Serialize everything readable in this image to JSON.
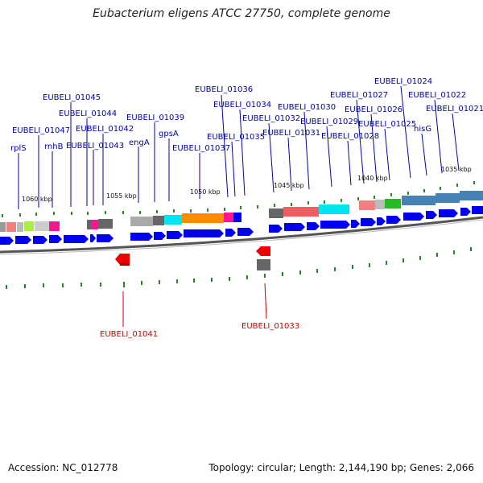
{
  "title": "Eubacterium eligens ATCC 27750, complete genome",
  "footer": {
    "accession": "Accession: NC_012778",
    "summary": "Topology: circular; Length: 2,144,190 bp; Genes: 2,066"
  },
  "colors": {
    "forward_gene": "#0000ee",
    "reverse_gene": "#ee0000",
    "label_blue": "#0000aa",
    "label_red": "#cc0000",
    "tick": "#228822",
    "backbone": "#555555"
  },
  "kbp_labels": [
    "1060 kbp",
    "1055 kbp",
    "1050 kbp",
    "1045 kbp",
    "1040 kbp",
    "1035 kbp"
  ],
  "forward_labels": [
    "rplS",
    "EUBELI_01047",
    "rnhB",
    "EUBELI_01045",
    "EUBELI_01044",
    "EUBELI_01043",
    "EUBELI_01042",
    "engA",
    "EUBELI_01039",
    "gpsA",
    "EUBELI_01037",
    "EUBELI_01036",
    "EUBELI_01035",
    "EUBELI_01034",
    "EUBELI_01032",
    "EUBELI_01031",
    "EUBELI_01030",
    "EUBELI_01029",
    "EUBELI_01028",
    "EUBELI_01027",
    "EUBELI_01026",
    "EUBELI_01025",
    "EUBELI_01024",
    "hisG",
    "EUBELI_01022",
    "EUBELI_01021"
  ],
  "reverse_labels": [
    "EUBELI_01041",
    "EUBELI_01033"
  ]
}
